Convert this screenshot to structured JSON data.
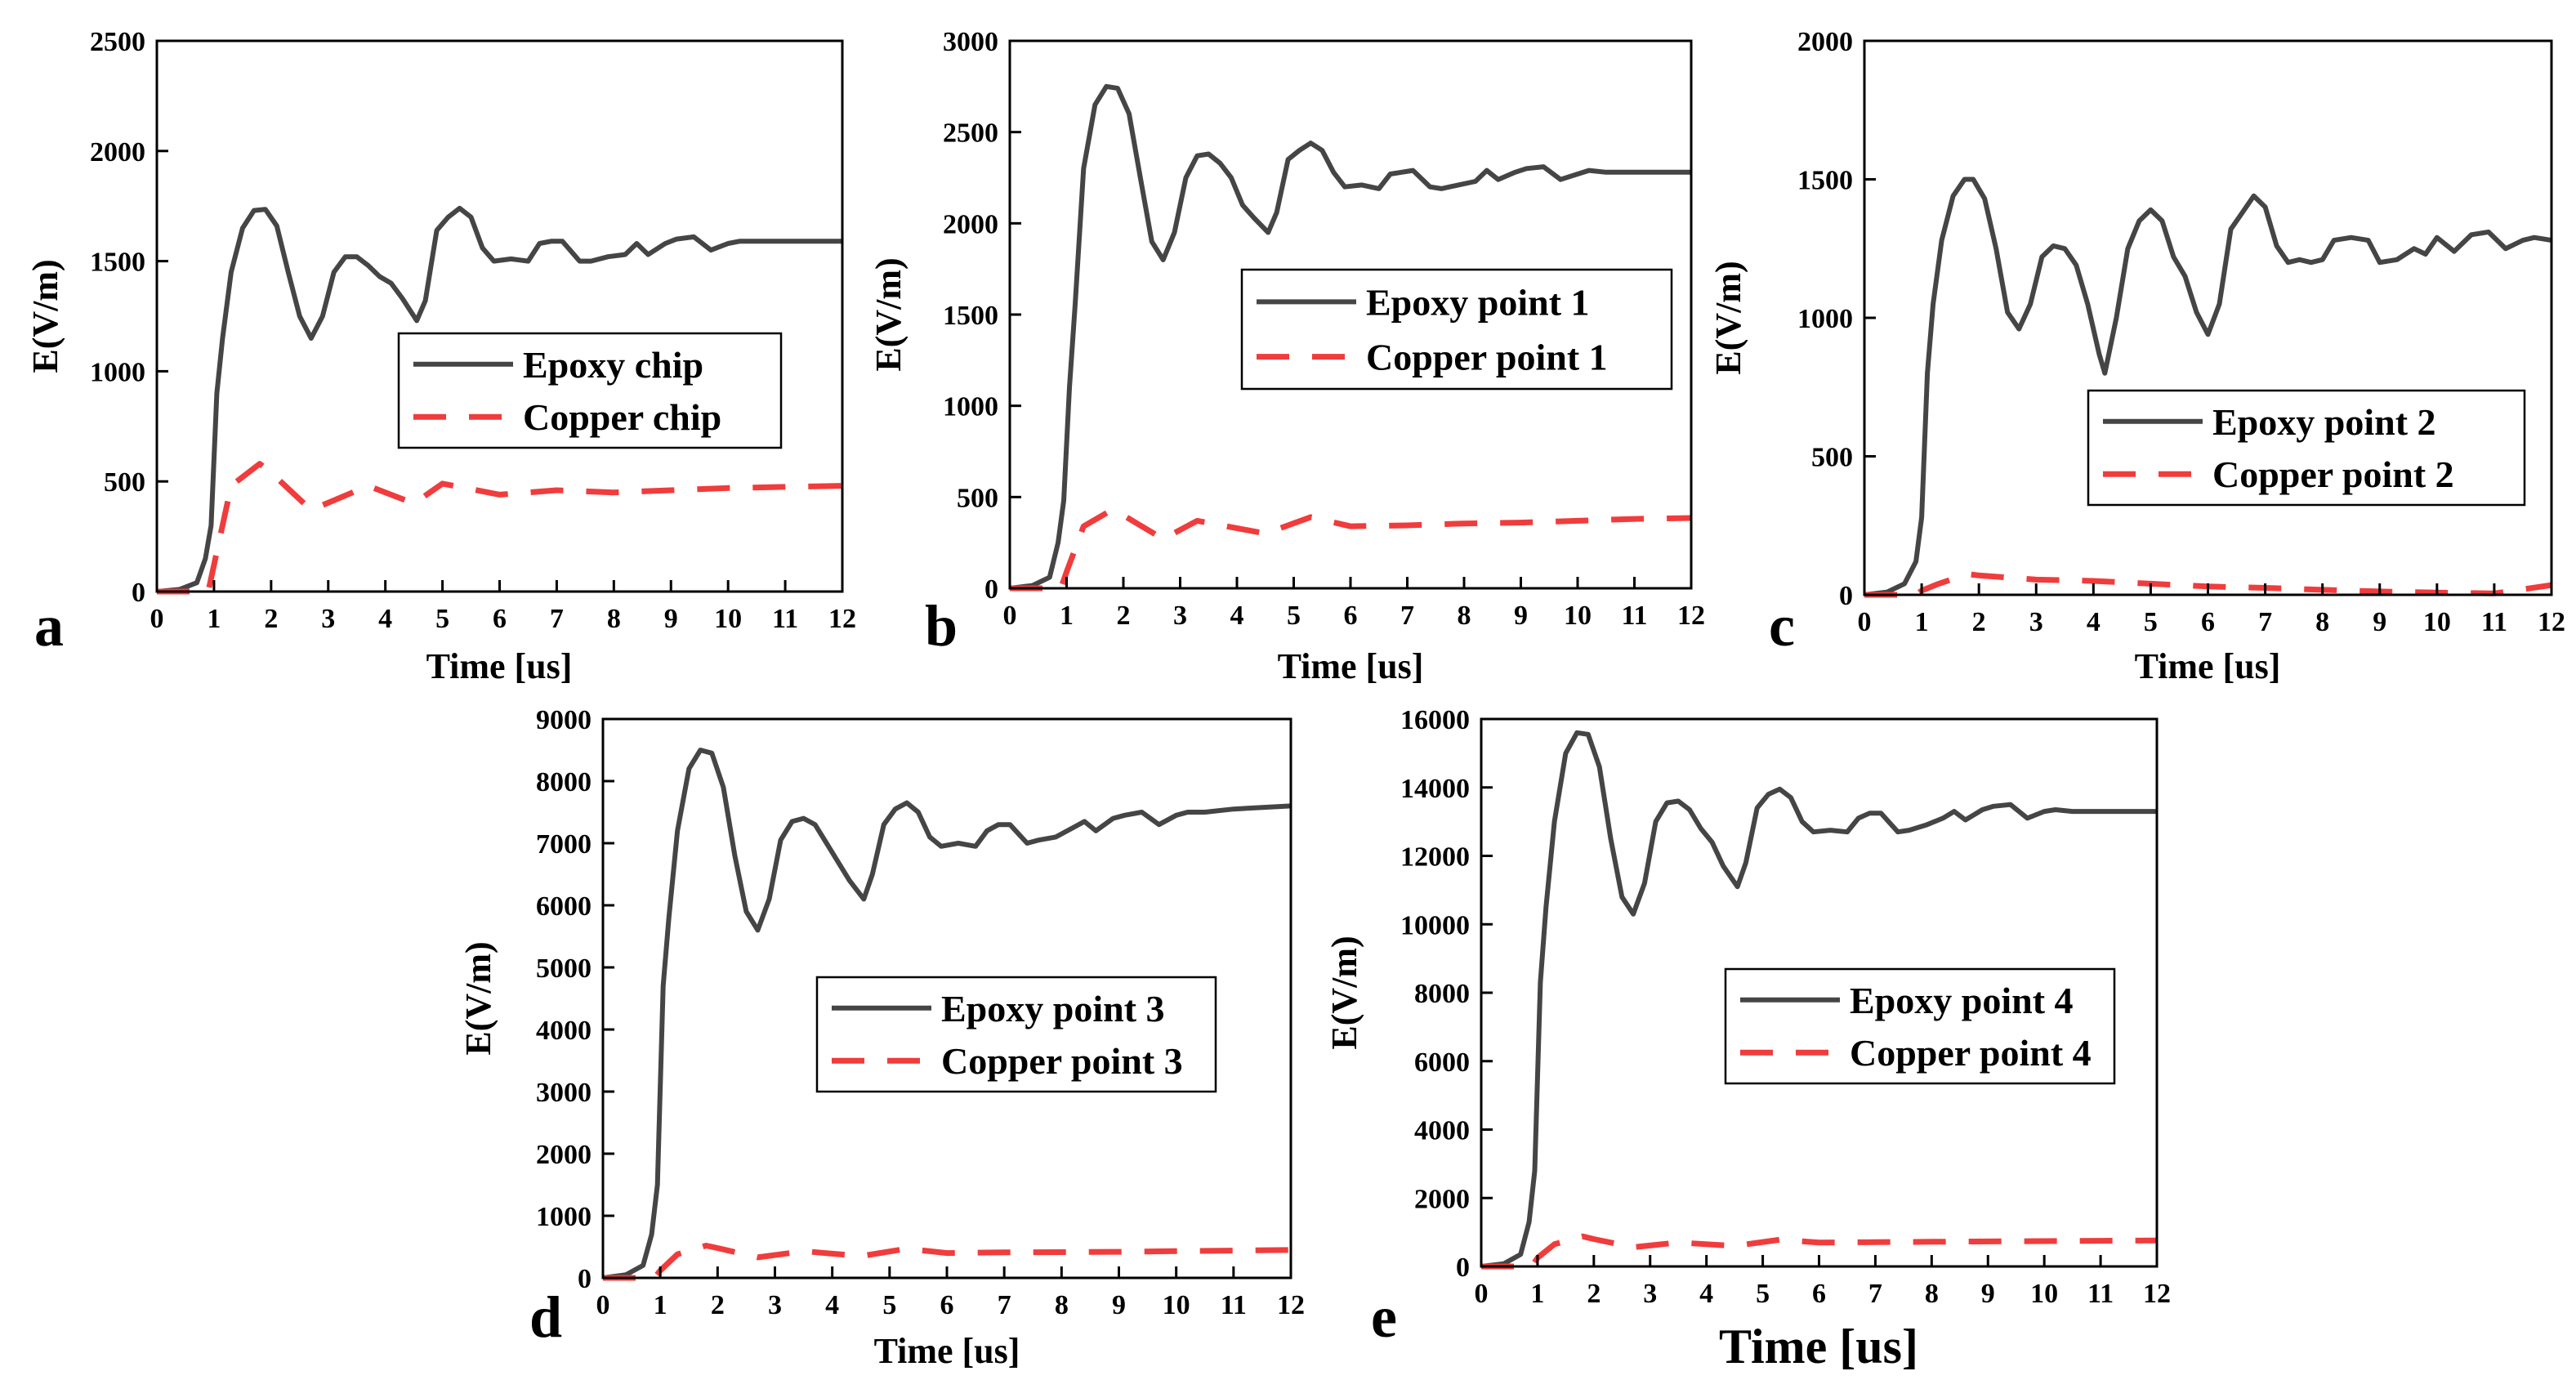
{
  "colors": {
    "epoxy": "#454545",
    "copper": "#f03c3c",
    "axis": "#000000"
  },
  "chart_data": [
    {
      "panel": "a",
      "type": "line",
      "xlabel": "Time [us]",
      "ylabel": "E(V/m)",
      "xlim": [
        0,
        12
      ],
      "ylim": [
        0,
        2500
      ],
      "xticks": [
        "0",
        "1",
        "2",
        "3",
        "4",
        "5",
        "6",
        "7",
        "8",
        "9",
        "10",
        "11",
        "12"
      ],
      "yticks": [
        "0",
        "500",
        "1000",
        "1500",
        "2000",
        "2500"
      ],
      "legend": [
        "Epoxy chip",
        "Copper chip"
      ],
      "series": [
        {
          "name": "Epoxy chip",
          "style": "solid",
          "x": [
            0,
            0.4,
            0.7,
            0.85,
            0.95,
            1.05,
            1.15,
            1.3,
            1.5,
            1.7,
            1.9,
            2.1,
            2.3,
            2.5,
            2.7,
            2.9,
            3.1,
            3.3,
            3.5,
            3.7,
            3.9,
            4.1,
            4.3,
            4.55,
            4.7,
            4.9,
            5.1,
            5.3,
            5.5,
            5.7,
            5.9,
            6.2,
            6.5,
            6.7,
            6.9,
            7.1,
            7.4,
            7.6,
            7.9,
            8.2,
            8.4,
            8.6,
            8.9,
            9.1,
            9.4,
            9.7,
            10.0,
            10.2,
            10.5,
            11.0,
            12.0
          ],
          "y": [
            0,
            10,
            40,
            150,
            300,
            900,
            1150,
            1450,
            1650,
            1730,
            1735,
            1660,
            1450,
            1250,
            1150,
            1250,
            1450,
            1520,
            1520,
            1480,
            1430,
            1400,
            1330,
            1230,
            1320,
            1640,
            1700,
            1740,
            1700,
            1560,
            1500,
            1510,
            1500,
            1580,
            1590,
            1590,
            1500,
            1500,
            1520,
            1530,
            1580,
            1530,
            1580,
            1600,
            1610,
            1550,
            1580,
            1590,
            1590,
            1590,
            1590
          ]
        },
        {
          "name": "Copper chip",
          "style": "dashed",
          "x": [
            0,
            0.9,
            1.0,
            1.3,
            1.8,
            2.0,
            2.7,
            3.7,
            4.5,
            5.0,
            6.0,
            7.0,
            8.0,
            9.0,
            10.0,
            11.0,
            12.0
          ],
          "y": [
            0,
            0,
            120,
            480,
            580,
            540,
            370,
            480,
            400,
            490,
            440,
            460,
            450,
            460,
            470,
            475,
            480
          ]
        }
      ]
    },
    {
      "panel": "b",
      "type": "line",
      "xlabel": "Time [us]",
      "ylabel": "E(V/m)",
      "xlim": [
        0,
        12
      ],
      "ylim": [
        0,
        3000
      ],
      "xticks": [
        "0",
        "1",
        "2",
        "3",
        "4",
        "5",
        "6",
        "7",
        "8",
        "9",
        "10",
        "11",
        "12"
      ],
      "yticks": [
        "0",
        "500",
        "1000",
        "1500",
        "2000",
        "2500",
        "3000"
      ],
      "legend": [
        "Epoxy point 1",
        "Copper point 1"
      ],
      "series": [
        {
          "name": "Epoxy point 1",
          "style": "solid",
          "x": [
            0,
            0.4,
            0.7,
            0.85,
            0.95,
            1.05,
            1.15,
            1.3,
            1.5,
            1.7,
            1.9,
            2.1,
            2.3,
            2.5,
            2.7,
            2.9,
            3.1,
            3.3,
            3.5,
            3.7,
            3.9,
            4.1,
            4.3,
            4.55,
            4.7,
            4.9,
            5.1,
            5.3,
            5.5,
            5.7,
            5.9,
            6.2,
            6.5,
            6.7,
            6.9,
            7.1,
            7.4,
            7.6,
            7.9,
            8.2,
            8.4,
            8.6,
            8.9,
            9.1,
            9.4,
            9.7,
            10.0,
            10.2,
            10.5,
            11.0,
            12.0
          ],
          "y": [
            0,
            15,
            60,
            250,
            480,
            1100,
            1550,
            2300,
            2650,
            2750,
            2740,
            2600,
            2250,
            1900,
            1800,
            1950,
            2250,
            2370,
            2380,
            2330,
            2250,
            2100,
            2030,
            1950,
            2060,
            2350,
            2400,
            2440,
            2400,
            2280,
            2200,
            2210,
            2190,
            2270,
            2280,
            2290,
            2200,
            2190,
            2210,
            2230,
            2290,
            2240,
            2280,
            2300,
            2310,
            2240,
            2270,
            2290,
            2280,
            2280,
            2280
          ]
        },
        {
          "name": "Copper point 1",
          "style": "dashed",
          "x": [
            0,
            0.9,
            1.0,
            1.3,
            1.8,
            2.0,
            2.7,
            3.3,
            4.5,
            5.3,
            6.0,
            7.0,
            8.0,
            9.0,
            10.0,
            11.0,
            12.0
          ],
          "y": [
            0,
            0,
            90,
            340,
            430,
            400,
            270,
            370,
            300,
            390,
            340,
            345,
            355,
            360,
            370,
            380,
            385
          ]
        }
      ]
    },
    {
      "panel": "c",
      "type": "line",
      "xlabel": "Time [us]",
      "ylabel": "E(V/m)",
      "xlim": [
        0,
        12
      ],
      "ylim": [
        0,
        2000
      ],
      "xticks": [
        "0",
        "1",
        "2",
        "3",
        "4",
        "5",
        "6",
        "7",
        "8",
        "9",
        "10",
        "11",
        "12"
      ],
      "yticks": [
        "0",
        "500",
        "1000",
        "1500",
        "2000"
      ],
      "legend": [
        "Epoxy point 2",
        "Copper point 2"
      ],
      "series": [
        {
          "name": "Epoxy point 2",
          "style": "solid",
          "x": [
            0,
            0.4,
            0.7,
            0.9,
            1.0,
            1.1,
            1.2,
            1.35,
            1.55,
            1.75,
            1.9,
            2.1,
            2.3,
            2.5,
            2.7,
            2.9,
            3.1,
            3.3,
            3.5,
            3.7,
            3.9,
            4.1,
            4.2,
            4.4,
            4.6,
            4.8,
            5.0,
            5.2,
            5.4,
            5.6,
            5.8,
            6.0,
            6.2,
            6.4,
            6.6,
            6.8,
            7.0,
            7.2,
            7.4,
            7.6,
            7.8,
            8.0,
            8.2,
            8.5,
            8.8,
            9.0,
            9.3,
            9.6,
            9.8,
            10.0,
            10.3,
            10.6,
            10.9,
            11.2,
            11.5,
            11.7,
            12.0
          ],
          "y": [
            0,
            10,
            40,
            120,
            280,
            800,
            1050,
            1280,
            1440,
            1500,
            1500,
            1430,
            1250,
            1020,
            960,
            1050,
            1220,
            1260,
            1250,
            1190,
            1050,
            870,
            800,
            1000,
            1250,
            1350,
            1390,
            1350,
            1220,
            1150,
            1020,
            940,
            1050,
            1320,
            1380,
            1440,
            1400,
            1260,
            1200,
            1210,
            1200,
            1210,
            1280,
            1290,
            1280,
            1200,
            1210,
            1250,
            1230,
            1290,
            1240,
            1300,
            1310,
            1250,
            1280,
            1290,
            1280
          ]
        },
        {
          "name": "Copper point 2",
          "style": "dashed",
          "x": [
            0,
            0.9,
            1.0,
            1.3,
            1.8,
            2.0,
            3.0,
            4.0,
            5.0,
            6.0,
            7.0,
            8.0,
            9.0,
            10.0,
            11.0,
            11.5,
            12.0
          ],
          "y": [
            0,
            0,
            15,
            40,
            75,
            70,
            55,
            50,
            40,
            30,
            25,
            18,
            12,
            8,
            5,
            20,
            35
          ]
        }
      ]
    },
    {
      "panel": "d",
      "type": "line",
      "xlabel": "Time [us]",
      "ylabel": "E(V/m)",
      "xlim": [
        0,
        12
      ],
      "ylim": [
        0,
        9000
      ],
      "xticks": [
        "0",
        "1",
        "2",
        "3",
        "4",
        "5",
        "6",
        "7",
        "8",
        "9",
        "10",
        "11",
        "12"
      ],
      "yticks": [
        "0",
        "1000",
        "2000",
        "3000",
        "4000",
        "5000",
        "6000",
        "7000",
        "8000",
        "9000"
      ],
      "legend": [
        "Epoxy point 3",
        "Copper point 3"
      ],
      "series": [
        {
          "name": "Epoxy point 3",
          "style": "solid",
          "x": [
            0,
            0.4,
            0.7,
            0.85,
            0.95,
            1.05,
            1.15,
            1.3,
            1.5,
            1.7,
            1.9,
            2.1,
            2.3,
            2.5,
            2.7,
            2.9,
            3.1,
            3.3,
            3.5,
            3.7,
            3.9,
            4.1,
            4.3,
            4.55,
            4.7,
            4.9,
            5.1,
            5.3,
            5.5,
            5.7,
            5.9,
            6.2,
            6.5,
            6.7,
            6.9,
            7.1,
            7.4,
            7.6,
            7.9,
            8.2,
            8.4,
            8.6,
            8.9,
            9.1,
            9.4,
            9.7,
            10.0,
            10.2,
            10.5,
            11.0,
            12.0
          ],
          "y": [
            0,
            50,
            200,
            700,
            1500,
            4700,
            5800,
            7200,
            8200,
            8500,
            8450,
            7900,
            6800,
            5900,
            5600,
            6100,
            7050,
            7350,
            7400,
            7300,
            7000,
            6700,
            6400,
            6100,
            6500,
            7300,
            7550,
            7650,
            7500,
            7100,
            6950,
            7000,
            6950,
            7200,
            7300,
            7300,
            7000,
            7050,
            7100,
            7250,
            7350,
            7200,
            7400,
            7450,
            7500,
            7300,
            7450,
            7500,
            7500,
            7550,
            7600
          ]
        },
        {
          "name": "Copper point 3",
          "style": "dashed",
          "x": [
            0,
            0.9,
            1.0,
            1.3,
            1.8,
            2.0,
            2.7,
            3.5,
            4.5,
            5.3,
            6.0,
            7.0,
            8.0,
            9.0,
            10.0,
            11.0,
            12.0
          ],
          "y": [
            0,
            0,
            120,
            380,
            520,
            480,
            330,
            430,
            350,
            470,
            400,
            410,
            415,
            420,
            430,
            440,
            450
          ]
        }
      ]
    },
    {
      "panel": "e",
      "type": "line",
      "xlabel": "Time [us]",
      "ylabel": "E(V/m)",
      "xlim": [
        0,
        12
      ],
      "ylim": [
        0,
        16000
      ],
      "xticks": [
        "0",
        "1",
        "2",
        "3",
        "4",
        "5",
        "6",
        "7",
        "8",
        "9",
        "10",
        "11",
        "12"
      ],
      "yticks": [
        "0",
        "2000",
        "4000",
        "6000",
        "8000",
        "10000",
        "12000",
        "14000",
        "16000"
      ],
      "legend": [
        "Epoxy point 4",
        "Copper point 4"
      ],
      "series": [
        {
          "name": "Epoxy point 4",
          "style": "solid",
          "x": [
            0,
            0.4,
            0.7,
            0.85,
            0.95,
            1.05,
            1.15,
            1.3,
            1.5,
            1.7,
            1.9,
            2.1,
            2.3,
            2.5,
            2.7,
            2.9,
            3.1,
            3.3,
            3.5,
            3.7,
            3.9,
            4.1,
            4.3,
            4.55,
            4.7,
            4.9,
            5.1,
            5.3,
            5.5,
            5.7,
            5.9,
            6.2,
            6.5,
            6.7,
            6.9,
            7.1,
            7.4,
            7.6,
            7.9,
            8.2,
            8.4,
            8.6,
            8.9,
            9.1,
            9.4,
            9.7,
            10.0,
            10.2,
            10.5,
            11.0,
            12.0
          ],
          "y": [
            0,
            80,
            350,
            1300,
            2800,
            8300,
            10500,
            13000,
            15000,
            15600,
            15550,
            14600,
            12500,
            10800,
            10300,
            11200,
            13000,
            13550,
            13600,
            13350,
            12800,
            12400,
            11700,
            11100,
            11800,
            13400,
            13800,
            13950,
            13700,
            13000,
            12700,
            12750,
            12700,
            13100,
            13250,
            13250,
            12700,
            12750,
            12900,
            13100,
            13300,
            13050,
            13350,
            13450,
            13500,
            13100,
            13300,
            13350,
            13300,
            13300,
            13300
          ]
        },
        {
          "name": "Copper point 4",
          "style": "dashed",
          "x": [
            0,
            0.9,
            1.0,
            1.3,
            1.8,
            2.0,
            2.7,
            3.5,
            4.5,
            5.3,
            6.0,
            7.0,
            8.0,
            9.0,
            10.0,
            11.0,
            12.0
          ],
          "y": [
            0,
            0,
            250,
            650,
            880,
            800,
            560,
            700,
            600,
            780,
            700,
            710,
            720,
            730,
            740,
            750,
            760
          ]
        }
      ]
    }
  ]
}
